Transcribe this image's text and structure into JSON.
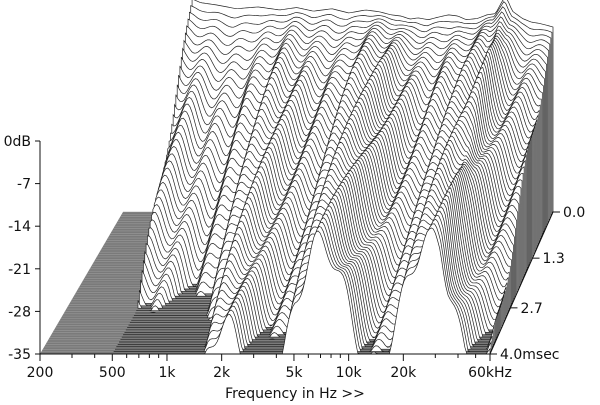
{
  "chart_data": {
    "type": "waterfall-3d",
    "xlabel": "Frequency in Hz >>",
    "x_unit": "kHz",
    "x_ticks": [
      "200",
      "500",
      "1k",
      "2k",
      "5k",
      "10k",
      "20k",
      "60kHz"
    ],
    "x_tick_values_hz": [
      200,
      500,
      1000,
      2000,
      5000,
      10000,
      20000,
      60000
    ],
    "xlim_hz": [
      200,
      60000
    ],
    "x_scale": "log",
    "y_ticks": [
      "0dB",
      "-7",
      "-14",
      "-21",
      "-28",
      "-35"
    ],
    "y_tick_values_db": [
      0,
      -7,
      -14,
      -21,
      -28,
      -35
    ],
    "ylim_db": [
      -35,
      0
    ],
    "z_ticks": [
      "0.0",
      "1.3",
      "2.7",
      "4.0msec"
    ],
    "z_tick_values_ms": [
      0.0,
      1.3,
      2.7,
      4.0
    ],
    "zlim_ms": [
      0.0,
      4.0
    ],
    "line_color": "#222222",
    "floor_color": "#7a7a7a",
    "initial_response": {
      "freq_hz": [
        500,
        560,
        700,
        900,
        1200,
        1600,
        2000,
        2500,
        3200,
        4000,
        5000,
        6000,
        7000,
        8000,
        9000,
        10000,
        11500,
        13000,
        15000,
        17000,
        19000,
        22000,
        25000,
        28000,
        30000,
        32000,
        35000,
        40000,
        45000,
        50000,
        55000,
        60000
      ],
      "level_db": [
        0,
        -0.6,
        -1.0,
        -1.6,
        -1.3,
        -1.8,
        -1.4,
        -2.0,
        -1.6,
        -2.3,
        -1.8,
        -2.1,
        -2.6,
        -2.8,
        -3.3,
        -3.1,
        -3.4,
        -3.0,
        -2.6,
        -2.8,
        -3.4,
        -3.2,
        -2.6,
        -2.4,
        -0.8,
        0.6,
        -2.0,
        -3.2,
        -3.8,
        -4.0,
        -4.3,
        -4.6
      ]
    }
  }
}
